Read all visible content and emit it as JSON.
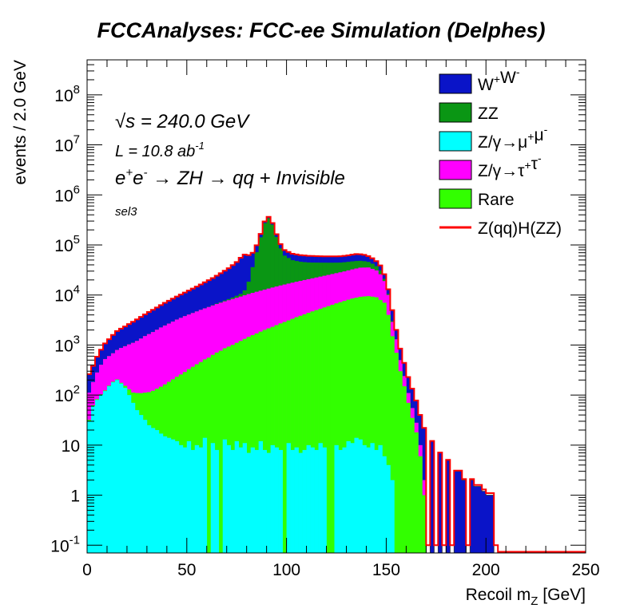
{
  "chart_data": {
    "type": "histogram-stacked",
    "title": "FCCAnalyses: FCC-ee Simulation (Delphes)",
    "xlabel": "Recoil m_Z [GeV]",
    "xlabel_main": "Recoil m",
    "xlabel_sub": "Z",
    "xlabel_unit": " [GeV]",
    "ylabel": "events / 2.0 GeV",
    "xlim": [
      0,
      250
    ],
    "ylim": [
      0.07,
      500000000
    ],
    "yscale": "log",
    "bin_width": 2.0,
    "xticks": [
      "0",
      "50",
      "100",
      "150",
      "200",
      "250"
    ],
    "ytick_labels": [
      "10^-1",
      "1",
      "10",
      "10^2",
      "10^3",
      "10^4",
      "10^5",
      "10^6",
      "10^7",
      "10^8"
    ],
    "annotations": {
      "sqrts": "√s = 240.0 GeV",
      "lumi": "L = 10.8 ab^-1",
      "process": "e+e- → ZH → qq + Invisible",
      "selection": "sel3"
    },
    "legend_position": "top-right",
    "legend": [
      {
        "label": "W+W-",
        "color": "#0a14c8",
        "style": "fill"
      },
      {
        "label": "ZZ",
        "color": "#0a9614",
        "style": "fill"
      },
      {
        "label": "Z/γ→μ+μ-",
        "color": "#00ffff",
        "style": "fill"
      },
      {
        "label": "Z/γ→τ+τ-",
        "color": "#ff00ff",
        "style": "fill"
      },
      {
        "label": "Rare",
        "color": "#32ff00",
        "style": "fill"
      },
      {
        "label": "Z(qq)H(ZZ)",
        "color": "#ff0000",
        "style": "line"
      }
    ],
    "series": [
      {
        "name": "Z/γ→μ+μ-",
        "color": "#00ffff",
        "anchors": [
          [
            0,
            0.3
          ],
          [
            1,
            30
          ],
          [
            3,
            60
          ],
          [
            5,
            80
          ],
          [
            7,
            100
          ],
          [
            9,
            120
          ],
          [
            11,
            150
          ],
          [
            13,
            180
          ],
          [
            15,
            200
          ],
          [
            17,
            170
          ],
          [
            19,
            140
          ],
          [
            21,
            100
          ],
          [
            23,
            70
          ],
          [
            25,
            50
          ],
          [
            27,
            40
          ],
          [
            29,
            32
          ],
          [
            31,
            25
          ],
          [
            33,
            22
          ],
          [
            35,
            20
          ],
          [
            37,
            17
          ],
          [
            39,
            15
          ],
          [
            41,
            14
          ],
          [
            43,
            13
          ],
          [
            45,
            12
          ],
          [
            47,
            10
          ],
          [
            49,
            9
          ],
          [
            51,
            12
          ],
          [
            53,
            8
          ],
          [
            55,
            10
          ],
          [
            57,
            9
          ],
          [
            59,
            14
          ],
          [
            61,
            9
          ],
          [
            63,
            11
          ],
          [
            65,
            8
          ],
          [
            67,
            9
          ],
          [
            69,
            13
          ],
          [
            71,
            10
          ],
          [
            73,
            8
          ],
          [
            75,
            12
          ],
          [
            77,
            9
          ],
          [
            79,
            11
          ],
          [
            81,
            7
          ],
          [
            83,
            9
          ],
          [
            85,
            8
          ],
          [
            87,
            12
          ],
          [
            89,
            8
          ],
          [
            91,
            7
          ],
          [
            93,
            10
          ],
          [
            95,
            9
          ],
          [
            97,
            8
          ],
          [
            99,
            10
          ],
          [
            101,
            11
          ],
          [
            103,
            8
          ],
          [
            105,
            9
          ],
          [
            107,
            7
          ],
          [
            109,
            8
          ],
          [
            111,
            10
          ],
          [
            113,
            9
          ],
          [
            115,
            8
          ],
          [
            117,
            11
          ],
          [
            119,
            9
          ],
          [
            121,
            7
          ],
          [
            123,
            8
          ],
          [
            125,
            10
          ],
          [
            127,
            8
          ],
          [
            129,
            9
          ],
          [
            131,
            12
          ],
          [
            133,
            11
          ],
          [
            135,
            14
          ],
          [
            137,
            13
          ],
          [
            139,
            10
          ],
          [
            141,
            9
          ],
          [
            143,
            11
          ],
          [
            145,
            8
          ],
          [
            147,
            10
          ],
          [
            149,
            6
          ],
          [
            151,
            4
          ],
          [
            153,
            2
          ]
        ],
        "zeros": [
          [
            60,
            62
          ],
          [
            66,
            68
          ],
          [
            98,
            100
          ],
          [
            120,
            122
          ],
          [
            123,
            124
          ]
        ]
      },
      {
        "name": "Rare",
        "color": "#32ff00",
        "anchors": [
          [
            0,
            0.3
          ],
          [
            1,
            2
          ],
          [
            5,
            3
          ],
          [
            9,
            4
          ],
          [
            13,
            5
          ],
          [
            17,
            6
          ],
          [
            21,
            30
          ],
          [
            25,
            60
          ],
          [
            29,
            80
          ],
          [
            33,
            100
          ],
          [
            37,
            130
          ],
          [
            41,
            170
          ],
          [
            45,
            220
          ],
          [
            49,
            280
          ],
          [
            53,
            360
          ],
          [
            57,
            450
          ],
          [
            61,
            560
          ],
          [
            65,
            700
          ],
          [
            69,
            850
          ],
          [
            73,
            1000
          ],
          [
            77,
            1200
          ],
          [
            81,
            1450
          ],
          [
            85,
            1700
          ],
          [
            89,
            2000
          ],
          [
            93,
            2300
          ],
          [
            97,
            2700
          ],
          [
            101,
            3100
          ],
          [
            105,
            3600
          ],
          [
            109,
            4100
          ],
          [
            113,
            4700
          ],
          [
            117,
            5300
          ],
          [
            121,
            6000
          ],
          [
            125,
            6800
          ],
          [
            129,
            7600
          ],
          [
            133,
            8500
          ],
          [
            137,
            9200
          ],
          [
            141,
            9500
          ],
          [
            145,
            9000
          ],
          [
            149,
            7000
          ],
          [
            151,
            4000
          ],
          [
            153,
            1500
          ],
          [
            155,
            700
          ],
          [
            157,
            300
          ],
          [
            159,
            150
          ],
          [
            161,
            70
          ],
          [
            163,
            35
          ],
          [
            165,
            18
          ],
          [
            167,
            6
          ],
          [
            169,
            1
          ]
        ],
        "zeros": []
      },
      {
        "name": "Z/γ→τ+τ-",
        "color": "#ff00ff",
        "anchors": [
          [
            0,
            5
          ],
          [
            1,
            80
          ],
          [
            3,
            120
          ],
          [
            5,
            200
          ],
          [
            7,
            300
          ],
          [
            9,
            400
          ],
          [
            13,
            500
          ],
          [
            17,
            700
          ],
          [
            21,
            900
          ],
          [
            25,
            1100
          ],
          [
            29,
            1400
          ],
          [
            33,
            1700
          ],
          [
            37,
            2100
          ],
          [
            41,
            2500
          ],
          [
            45,
            3000
          ],
          [
            49,
            3500
          ],
          [
            53,
            4000
          ],
          [
            57,
            4600
          ],
          [
            61,
            5200
          ],
          [
            65,
            5900
          ],
          [
            69,
            6600
          ],
          [
            73,
            7300
          ],
          [
            77,
            8100
          ],
          [
            81,
            9000
          ],
          [
            85,
            9900
          ],
          [
            89,
            10800
          ],
          [
            93,
            11800
          ],
          [
            97,
            12800
          ],
          [
            101,
            13800
          ],
          [
            105,
            14800
          ],
          [
            109,
            15800
          ],
          [
            113,
            16800
          ],
          [
            117,
            18000
          ],
          [
            121,
            19200
          ],
          [
            125,
            20500
          ],
          [
            129,
            22000
          ],
          [
            133,
            24000
          ],
          [
            137,
            26000
          ],
          [
            141,
            26000
          ],
          [
            145,
            22000
          ],
          [
            147,
            18000
          ],
          [
            149,
            12000
          ],
          [
            151,
            6000
          ],
          [
            153,
            1400
          ],
          [
            155,
            600
          ],
          [
            157,
            200
          ],
          [
            159,
            90
          ],
          [
            161,
            40
          ],
          [
            163,
            20
          ],
          [
            165,
            10
          ],
          [
            167,
            4
          ],
          [
            169,
            1
          ],
          [
            171,
            0
          ]
        ],
        "zeros": []
      },
      {
        "name": "ZZ",
        "color": "#0a9614",
        "anchors": [
          [
            0,
            0
          ],
          [
            57,
            20
          ],
          [
            61,
            60
          ],
          [
            65,
            150
          ],
          [
            69,
            300
          ],
          [
            73,
            600
          ],
          [
            77,
            1200
          ],
          [
            79,
            2500
          ],
          [
            81,
            8000
          ],
          [
            83,
            25000
          ],
          [
            85,
            60000
          ],
          [
            87,
            130000
          ],
          [
            89,
            260000
          ],
          [
            91,
            330000
          ],
          [
            93,
            240000
          ],
          [
            95,
            130000
          ],
          [
            97,
            70000
          ],
          [
            99,
            45000
          ],
          [
            103,
            32000
          ],
          [
            107,
            27000
          ],
          [
            111,
            24000
          ],
          [
            115,
            22000
          ],
          [
            119,
            20000
          ],
          [
            123,
            18000
          ],
          [
            127,
            16000
          ],
          [
            131,
            15000
          ],
          [
            135,
            14000
          ],
          [
            139,
            12000
          ],
          [
            143,
            9000
          ],
          [
            147,
            5000
          ],
          [
            149,
            2000
          ],
          [
            151,
            500
          ],
          [
            153,
            100
          ],
          [
            155,
            10
          ],
          [
            157,
            0
          ]
        ],
        "zeros": []
      },
      {
        "name": "W+W-",
        "color": "#0a14c8",
        "anchors": [
          [
            0,
            15
          ],
          [
            1,
            150
          ],
          [
            3,
            200
          ],
          [
            5,
            300
          ],
          [
            7,
            400
          ],
          [
            9,
            550
          ],
          [
            11,
            700
          ],
          [
            13,
            900
          ],
          [
            15,
            1100
          ],
          [
            19,
            1400
          ],
          [
            23,
            1800
          ],
          [
            27,
            2300
          ],
          [
            31,
            2900
          ],
          [
            35,
            3600
          ],
          [
            39,
            4500
          ],
          [
            43,
            5500
          ],
          [
            47,
            6700
          ],
          [
            51,
            8200
          ],
          [
            55,
            10000
          ],
          [
            59,
            12500
          ],
          [
            63,
            15500
          ],
          [
            67,
            20000
          ],
          [
            71,
            26000
          ],
          [
            75,
            36000
          ],
          [
            77,
            45000
          ],
          [
            79,
            52000
          ],
          [
            81,
            44000
          ],
          [
            83,
            34000
          ],
          [
            85,
            27000
          ],
          [
            87,
            24000
          ],
          [
            91,
            21000
          ],
          [
            95,
            19000
          ],
          [
            99,
            18000
          ],
          [
            103,
            17000
          ],
          [
            107,
            16500
          ],
          [
            111,
            16000
          ],
          [
            115,
            15500
          ],
          [
            119,
            15000
          ],
          [
            123,
            15000
          ],
          [
            127,
            15000
          ],
          [
            131,
            16000
          ],
          [
            135,
            18000
          ],
          [
            139,
            16000
          ],
          [
            143,
            12000
          ],
          [
            147,
            8000
          ],
          [
            149,
            5000
          ],
          [
            151,
            2500
          ],
          [
            153,
            2000
          ],
          [
            155,
            700
          ],
          [
            157,
            350
          ],
          [
            159,
            200
          ],
          [
            161,
            120
          ],
          [
            163,
            80
          ],
          [
            165,
            50
          ],
          [
            167,
            30
          ],
          [
            169,
            20
          ],
          [
            171,
            15
          ],
          [
            173,
            12
          ],
          [
            175,
            10
          ],
          [
            177,
            7
          ],
          [
            179,
            6
          ],
          [
            181,
            5
          ],
          [
            183,
            4
          ],
          [
            185,
            3
          ],
          [
            187,
            3
          ],
          [
            189,
            2
          ],
          [
            191,
            2
          ],
          [
            193,
            2
          ],
          [
            195,
            1.5
          ],
          [
            197,
            1.5
          ],
          [
            199,
            1.2
          ],
          [
            201,
            1
          ],
          [
            203,
            1
          ],
          [
            205,
            0
          ]
        ],
        "zeros": [
          [
            170,
            172
          ],
          [
            174,
            176
          ],
          [
            178,
            180
          ],
          [
            182,
            184
          ],
          [
            190,
            192
          ]
        ]
      },
      {
        "name": "Z(qq)H(ZZ)",
        "color": "#ff0000",
        "style": "line",
        "anchors": [
          [
            0,
            0.1
          ],
          [
            205,
            0.1
          ]
        ],
        "zeros": []
      }
    ]
  }
}
